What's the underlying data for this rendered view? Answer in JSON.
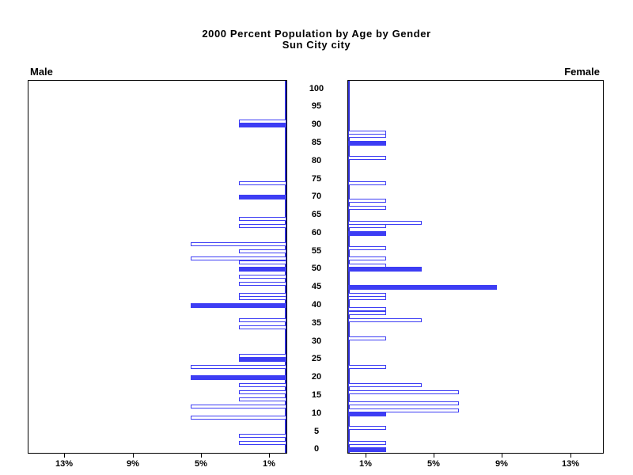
{
  "title": {
    "line1": "2000 Percent Population by Age by Gender",
    "line2": "Sun City city"
  },
  "panel_labels": {
    "left": "Male",
    "right": "Female"
  },
  "colors": {
    "bar_blue": "#3d3df4",
    "axis_blue": "#2e2ed6",
    "frame_black": "#000000",
    "background": "#ffffff"
  },
  "chart_data": {
    "type": "bar",
    "variant": "population-pyramid-single-year-of-age",
    "title": "2000 Percent Population by Age by Gender",
    "subtitle": "Sun City city",
    "legend": "none",
    "x_axis": {
      "unit": "percent of gender population",
      "tick_values": [
        1,
        5,
        9,
        13
      ],
      "male_tick_labels": [
        "13%",
        "9%",
        "5%",
        "1%"
      ],
      "female_tick_labels": [
        "1%",
        "5%",
        "9%",
        "13%"
      ],
      "range_percent": [
        0,
        15
      ]
    },
    "y_axis": {
      "unit": "age in years",
      "tick_step": 5,
      "tick_labels": [
        "0",
        "5",
        "10",
        "15",
        "20",
        "25",
        "30",
        "35",
        "40",
        "45",
        "50",
        "55",
        "60",
        "65",
        "70",
        "75",
        "80",
        "85",
        "90",
        "95",
        "100"
      ],
      "tick_values": [
        0,
        5,
        10,
        15,
        20,
        25,
        30,
        35,
        40,
        45,
        50,
        55,
        60,
        65,
        70,
        75,
        80,
        85,
        90,
        95,
        100
      ]
    },
    "bar_style_note": "hollow outline = off-multiple single ages; solid filled = ages at multiples of five",
    "series": [
      {
        "name": "Male",
        "side": "left",
        "bars": [
          {
            "age": 91,
            "value": 2.8,
            "filled": false
          },
          {
            "age": 90,
            "value": 2.8,
            "filled": true
          },
          {
            "age": 74,
            "value": 2.8,
            "filled": false
          },
          {
            "age": 70,
            "value": 2.8,
            "filled": true
          },
          {
            "age": 64,
            "value": 2.8,
            "filled": false
          },
          {
            "age": 62,
            "value": 2.8,
            "filled": false
          },
          {
            "age": 57,
            "value": 5.6,
            "filled": false
          },
          {
            "age": 55,
            "value": 2.8,
            "filled": false
          },
          {
            "age": 53,
            "value": 5.6,
            "filled": false
          },
          {
            "age": 52,
            "value": 2.8,
            "filled": false
          },
          {
            "age": 50,
            "value": 2.8,
            "filled": true
          },
          {
            "age": 48,
            "value": 2.8,
            "filled": false
          },
          {
            "age": 46,
            "value": 2.8,
            "filled": false
          },
          {
            "age": 43,
            "value": 2.8,
            "filled": false
          },
          {
            "age": 42,
            "value": 2.8,
            "filled": false
          },
          {
            "age": 40,
            "value": 5.6,
            "filled": true
          },
          {
            "age": 36,
            "value": 2.8,
            "filled": false
          },
          {
            "age": 34,
            "value": 2.8,
            "filled": false
          },
          {
            "age": 26,
            "value": 2.8,
            "filled": false
          },
          {
            "age": 25,
            "value": 2.8,
            "filled": true
          },
          {
            "age": 23,
            "value": 5.6,
            "filled": false
          },
          {
            "age": 20,
            "value": 5.6,
            "filled": true
          },
          {
            "age": 18,
            "value": 2.8,
            "filled": false
          },
          {
            "age": 16,
            "value": 2.8,
            "filled": false
          },
          {
            "age": 14,
            "value": 2.8,
            "filled": false
          },
          {
            "age": 12,
            "value": 5.6,
            "filled": false
          },
          {
            "age": 9,
            "value": 5.6,
            "filled": false
          },
          {
            "age": 4,
            "value": 2.8,
            "filled": false
          },
          {
            "age": 2,
            "value": 2.8,
            "filled": false
          }
        ]
      },
      {
        "name": "Female",
        "side": "right",
        "bars": [
          {
            "age": 88,
            "value": 2.2,
            "filled": false
          },
          {
            "age": 87,
            "value": 2.2,
            "filled": false
          },
          {
            "age": 85,
            "value": 2.2,
            "filled": true
          },
          {
            "age": 81,
            "value": 2.2,
            "filled": false
          },
          {
            "age": 74,
            "value": 2.2,
            "filled": false
          },
          {
            "age": 69,
            "value": 2.2,
            "filled": false
          },
          {
            "age": 67,
            "value": 2.2,
            "filled": false
          },
          {
            "age": 63,
            "value": 4.3,
            "filled": false
          },
          {
            "age": 62,
            "value": 2.2,
            "filled": false
          },
          {
            "age": 60,
            "value": 2.2,
            "filled": true
          },
          {
            "age": 56,
            "value": 2.2,
            "filled": false
          },
          {
            "age": 53,
            "value": 2.2,
            "filled": false
          },
          {
            "age": 51,
            "value": 2.2,
            "filled": false
          },
          {
            "age": 50,
            "value": 4.3,
            "filled": true
          },
          {
            "age": 45,
            "value": 8.7,
            "filled": true
          },
          {
            "age": 43,
            "value": 2.2,
            "filled": false
          },
          {
            "age": 42,
            "value": 2.2,
            "filled": false
          },
          {
            "age": 39,
            "value": 2.2,
            "filled": false
          },
          {
            "age": 38,
            "value": 2.2,
            "filled": false
          },
          {
            "age": 36,
            "value": 4.3,
            "filled": false
          },
          {
            "age": 31,
            "value": 2.2,
            "filled": false
          },
          {
            "age": 23,
            "value": 2.2,
            "filled": false
          },
          {
            "age": 18,
            "value": 4.3,
            "filled": false
          },
          {
            "age": 16,
            "value": 6.5,
            "filled": false
          },
          {
            "age": 13,
            "value": 6.5,
            "filled": false
          },
          {
            "age": 11,
            "value": 6.5,
            "filled": false
          },
          {
            "age": 10,
            "value": 2.2,
            "filled": true
          },
          {
            "age": 6,
            "value": 2.2,
            "filled": false
          },
          {
            "age": 2,
            "value": 2.2,
            "filled": false
          },
          {
            "age": 0,
            "value": 2.2,
            "filled": true
          }
        ]
      }
    ]
  }
}
